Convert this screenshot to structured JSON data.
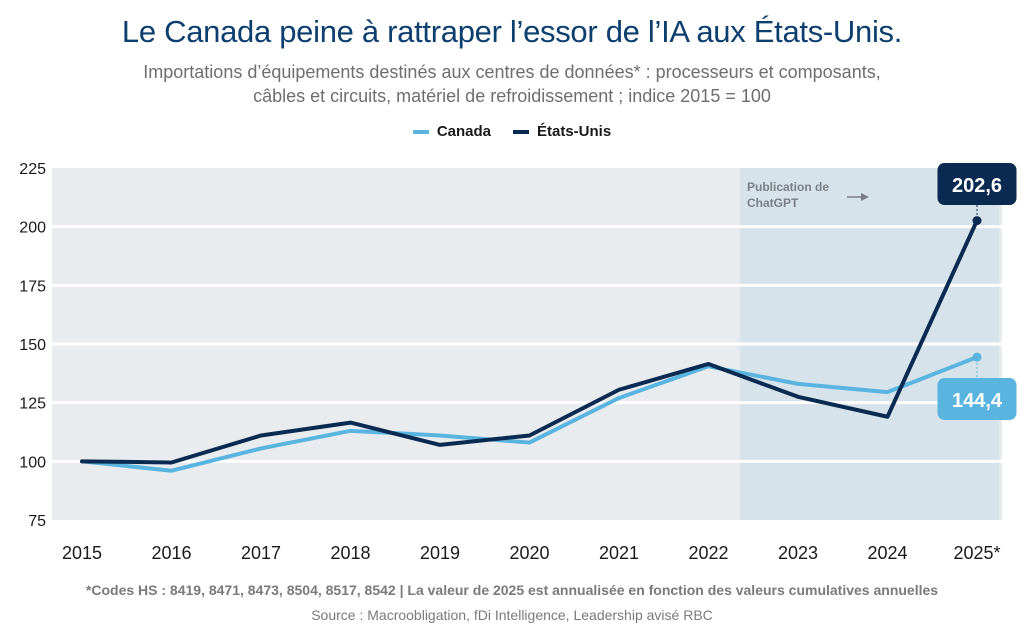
{
  "chart_data": {
    "type": "line",
    "title": "Le Canada peine à rattraper l’essor de l’IA aux États-Unis.",
    "subtitle_line1": "Importations d’équipements destinés aux centres de données* : processeurs et composants,",
    "subtitle_line2": "câbles et circuits, matériel de refroidissement ; indice 2015 = 100",
    "xlabel": "",
    "ylabel": "",
    "x": [
      "2015",
      "2016",
      "2017",
      "2018",
      "2019",
      "2020",
      "2021",
      "2022",
      "2023",
      "2024",
      "2025*"
    ],
    "ylim": [
      75,
      225
    ],
    "yticks": [
      75,
      100,
      125,
      150,
      175,
      200,
      225
    ],
    "grid": true,
    "legend_position": "top-center",
    "series": [
      {
        "name": "Canada",
        "color": "#5ab4e0",
        "values": [
          100,
          96,
          105.5,
          113,
          111,
          108,
          127,
          140.5,
          133,
          129.5,
          144.4
        ]
      },
      {
        "name": "États-Unis",
        "color": "#0b2a52",
        "values": [
          100,
          99.5,
          111,
          116.5,
          107,
          111,
          130.5,
          141.5,
          127.5,
          119,
          202.6
        ]
      }
    ],
    "end_labels": {
      "Canada": "144,4",
      "États-Unis": "202,6"
    },
    "shaded_region": {
      "from_x": 7.35,
      "to_x": 10.25,
      "color": "#d7e3ea"
    },
    "annotation": {
      "line1": "Publication de",
      "line2": "ChatGPT",
      "arrow": "right-arrow"
    },
    "plot_background": "#e9ecef"
  },
  "footnote": "*Codes HS : 8419, 8471, 8473, 8504, 8517, 8542 | La valeur de 2025 est annualisée en fonction des valeurs cumulatives annuelles",
  "source": "Source : Macroobligation, fDi Intelligence, Leadership avisé RBC"
}
